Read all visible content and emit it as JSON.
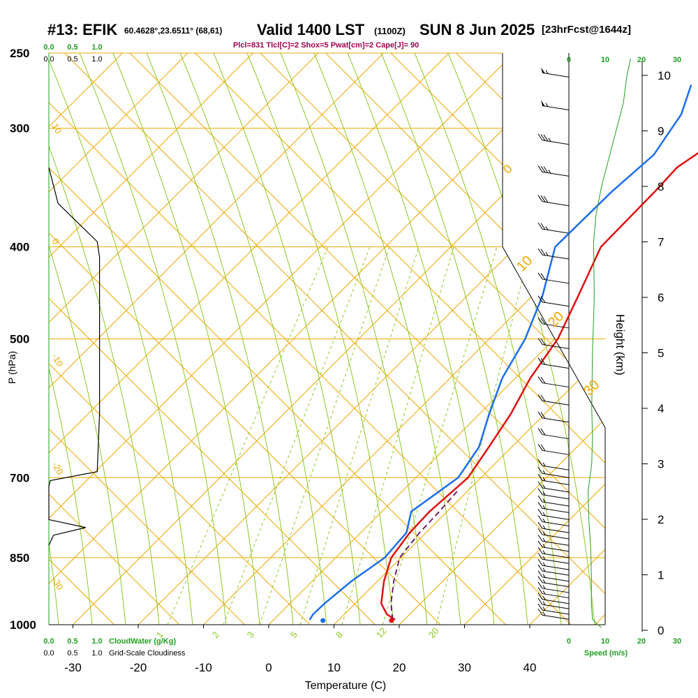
{
  "header": {
    "title": "#13: EFIK",
    "coords": "60.4628°,23.6511° (68,61)",
    "valid": "Valid 1400 LST",
    "zulu": "(1100Z)",
    "date": "SUN 8 Jun 2025",
    "forecast": "[23hrFcst@1644z]",
    "indices": "Plcl=831 Tlcl[C]=2 Shox=5 Pwat[cm]=2 Cape[J]= 90"
  },
  "colors": {
    "temperature": "#e01010",
    "dewpoint": "#1a6ef0",
    "parcel": "#6a0a6a",
    "isobar_isotherm": "#f0a800",
    "adiabat": "#8cc820",
    "green_text": "#20a020",
    "index_text": "#a0004a"
  },
  "chart_data": {
    "type": "line",
    "title": "",
    "xlabel": "Temperature (C)",
    "ylabel": "P (hPa)",
    "right_axis_label": "Height (km)",
    "xlim": [
      -35,
      45
    ],
    "pressure_levels": [
      250,
      300,
      400,
      500,
      700,
      850,
      1000
    ],
    "temp_ticks": [
      -30,
      -20,
      -10,
      0,
      10,
      20,
      30,
      40
    ],
    "height_ticks": [
      0,
      1,
      2,
      3,
      4,
      5,
      6,
      7,
      8,
      9,
      10
    ],
    "isotherm_labels": [
      "10",
      "0",
      "-10",
      "-20",
      "-30"
    ],
    "mixing_ratio_labels": [
      "1",
      "2",
      "3",
      "5",
      "8",
      "12",
      "20"
    ],
    "adiabat_labels": [
      "0",
      "10",
      "20",
      "30"
    ],
    "cloud_scale_top": [
      "0.0",
      "0.5",
      "1.0"
    ],
    "cloud_scale_bottom": [
      "0.0",
      "0.5",
      "1.0"
    ],
    "cloudwater_label": "CloudWater (g/Kg)",
    "cloudiness_label": "Grid-Scale Cloudiness",
    "speed_ticks_top": [
      "0",
      "10",
      "20",
      "30"
    ],
    "speed_ticks_bottom": [
      "0",
      "10",
      "20",
      "30"
    ],
    "speed_label": "Speed (m/s)",
    "series": [
      {
        "key": "temperature",
        "points": [
          [
            988,
            18.6
          ],
          [
            975,
            16.5
          ],
          [
            950,
            14.0
          ],
          [
            900,
            11.0
          ],
          [
            850,
            8.5
          ],
          [
            800,
            7.5
          ],
          [
            760,
            7.3
          ],
          [
            700,
            8.0
          ],
          [
            650,
            6.5
          ],
          [
            600,
            4.8
          ],
          [
            550,
            2.3
          ],
          [
            500,
            0.5
          ],
          [
            450,
            -3.0
          ],
          [
            400,
            -7.0
          ],
          [
            350,
            -7.2
          ],
          [
            330,
            -7.5
          ],
          [
            300,
            -4.7
          ],
          [
            270,
            0.0
          ]
        ]
      },
      {
        "key": "dewpoint",
        "points": [
          [
            988,
            5.5
          ],
          [
            975,
            5.2
          ],
          [
            950,
            5.3
          ],
          [
            900,
            6.0
          ],
          [
            850,
            7.5
          ],
          [
            800,
            7.0
          ],
          [
            760,
            4.5
          ],
          [
            700,
            6.5
          ],
          [
            650,
            5.0
          ],
          [
            600,
            1.5
          ],
          [
            550,
            -2.0
          ],
          [
            500,
            -4.5
          ],
          [
            450,
            -8.5
          ],
          [
            400,
            -14.0
          ],
          [
            350,
            -13.8
          ],
          [
            320,
            -13.0
          ],
          [
            290,
            -15.0
          ],
          [
            270,
            -18.0
          ]
        ]
      },
      {
        "key": "parcel",
        "points": [
          [
            988,
            18.2
          ],
          [
            950,
            15.5
          ],
          [
            900,
            12.5
          ],
          [
            850,
            9.8
          ],
          [
            800,
            9.0
          ],
          [
            760,
            8.8
          ],
          [
            720,
            8.4
          ]
        ]
      }
    ],
    "surface_temp_marker": 18.8,
    "surface_dew_marker": 8.3,
    "cloud_profile": [
      [
        330,
        0.0
      ],
      [
        360,
        0.2
      ],
      [
        395,
        1.05
      ],
      [
        410,
        1.1
      ],
      [
        500,
        1.1
      ],
      [
        600,
        1.1
      ],
      [
        690,
        1.05
      ],
      [
        705,
        0.03
      ],
      [
        715,
        0.0
      ],
      [
        775,
        0.0
      ],
      [
        790,
        0.8
      ],
      [
        805,
        0.1
      ],
      [
        825,
        0.0
      ]
    ],
    "wind_speed_profile_ms": [
      [
        0.05,
        9
      ],
      [
        0.1,
        8
      ],
      [
        0.2,
        6.5
      ],
      [
        0.5,
        6.2
      ],
      [
        1.0,
        6.2
      ],
      [
        1.5,
        6.0
      ],
      [
        2.0,
        5.5
      ],
      [
        2.5,
        5.3
      ],
      [
        3.0,
        6.3
      ],
      [
        3.5,
        6.5
      ],
      [
        4.0,
        6.3
      ],
      [
        5.0,
        6.5
      ],
      [
        6.0,
        7.0
      ],
      [
        7.0,
        6.8
      ],
      [
        7.5,
        7.5
      ],
      [
        8.0,
        9.0
      ],
      [
        9.0,
        13.0
      ],
      [
        9.5,
        15.0
      ],
      [
        10.0,
        16.0
      ],
      [
        10.3,
        17.0
      ]
    ],
    "wind_barbs": [
      {
        "p": 265,
        "spd": 55
      },
      {
        "p": 287,
        "spd": 55
      },
      {
        "p": 312,
        "spd": 35
      },
      {
        "p": 337,
        "spd": 35
      },
      {
        "p": 362,
        "spd": 30
      },
      {
        "p": 387,
        "spd": 25
      },
      {
        "p": 412,
        "spd": 25
      },
      {
        "p": 437,
        "spd": 20
      },
      {
        "p": 462,
        "spd": 20
      },
      {
        "p": 487,
        "spd": 20
      },
      {
        "p": 512,
        "spd": 20
      },
      {
        "p": 537,
        "spd": 20
      },
      {
        "p": 562,
        "spd": 20
      },
      {
        "p": 587,
        "spd": 20
      },
      {
        "p": 612,
        "spd": 20
      },
      {
        "p": 637,
        "spd": 20
      },
      {
        "p": 662,
        "spd": 20
      },
      {
        "p": 687,
        "spd": 15
      },
      {
        "p": 700,
        "spd": 15
      },
      {
        "p": 712,
        "spd": 15
      },
      {
        "p": 725,
        "spd": 15
      },
      {
        "p": 737,
        "spd": 15
      },
      {
        "p": 750,
        "spd": 15
      },
      {
        "p": 762,
        "spd": 15
      },
      {
        "p": 775,
        "spd": 15
      },
      {
        "p": 787,
        "spd": 15
      },
      {
        "p": 800,
        "spd": 15
      },
      {
        "p": 812,
        "spd": 15
      },
      {
        "p": 825,
        "spd": 15
      },
      {
        "p": 837,
        "spd": 15
      },
      {
        "p": 850,
        "spd": 15
      },
      {
        "p": 862,
        "spd": 15
      },
      {
        "p": 875,
        "spd": 15
      },
      {
        "p": 887,
        "spd": 15
      },
      {
        "p": 900,
        "spd": 15
      },
      {
        "p": 912,
        "spd": 15
      },
      {
        "p": 925,
        "spd": 15
      },
      {
        "p": 937,
        "spd": 15
      },
      {
        "p": 950,
        "spd": 15
      },
      {
        "p": 962,
        "spd": 15
      },
      {
        "p": 975,
        "spd": 15
      },
      {
        "p": 987,
        "spd": 15
      }
    ]
  }
}
